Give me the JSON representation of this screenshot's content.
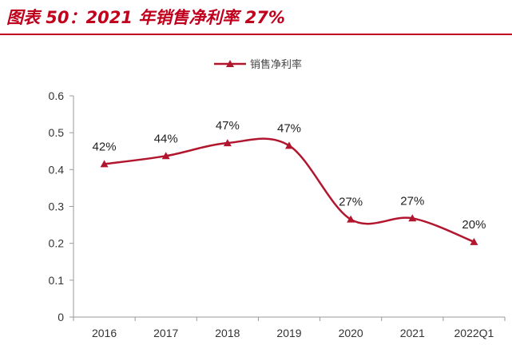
{
  "figure": {
    "title": "图表 50：2021 年销售净利率 27%",
    "accent_color": "#c0001c"
  },
  "chart_data": {
    "type": "line",
    "categories": [
      "2016",
      "2017",
      "2018",
      "2019",
      "2020",
      "2021",
      "2022Q1"
    ],
    "series": [
      {
        "name": "销售净利率",
        "color": "#b2162e",
        "marker": "triangle",
        "smooth": true,
        "values": [
          0.415,
          0.437,
          0.472,
          0.465,
          0.265,
          0.268,
          0.204
        ],
        "data_labels": [
          "42%",
          "44%",
          "47%",
          "47%",
          "27%",
          "27%",
          "20%"
        ]
      }
    ],
    "ylim": [
      0,
      0.6
    ],
    "yticks": [
      "0",
      "0.1",
      "0.2",
      "0.3",
      "0.4",
      "0.5",
      "0.6"
    ],
    "grid": false,
    "legend_position": "top"
  }
}
